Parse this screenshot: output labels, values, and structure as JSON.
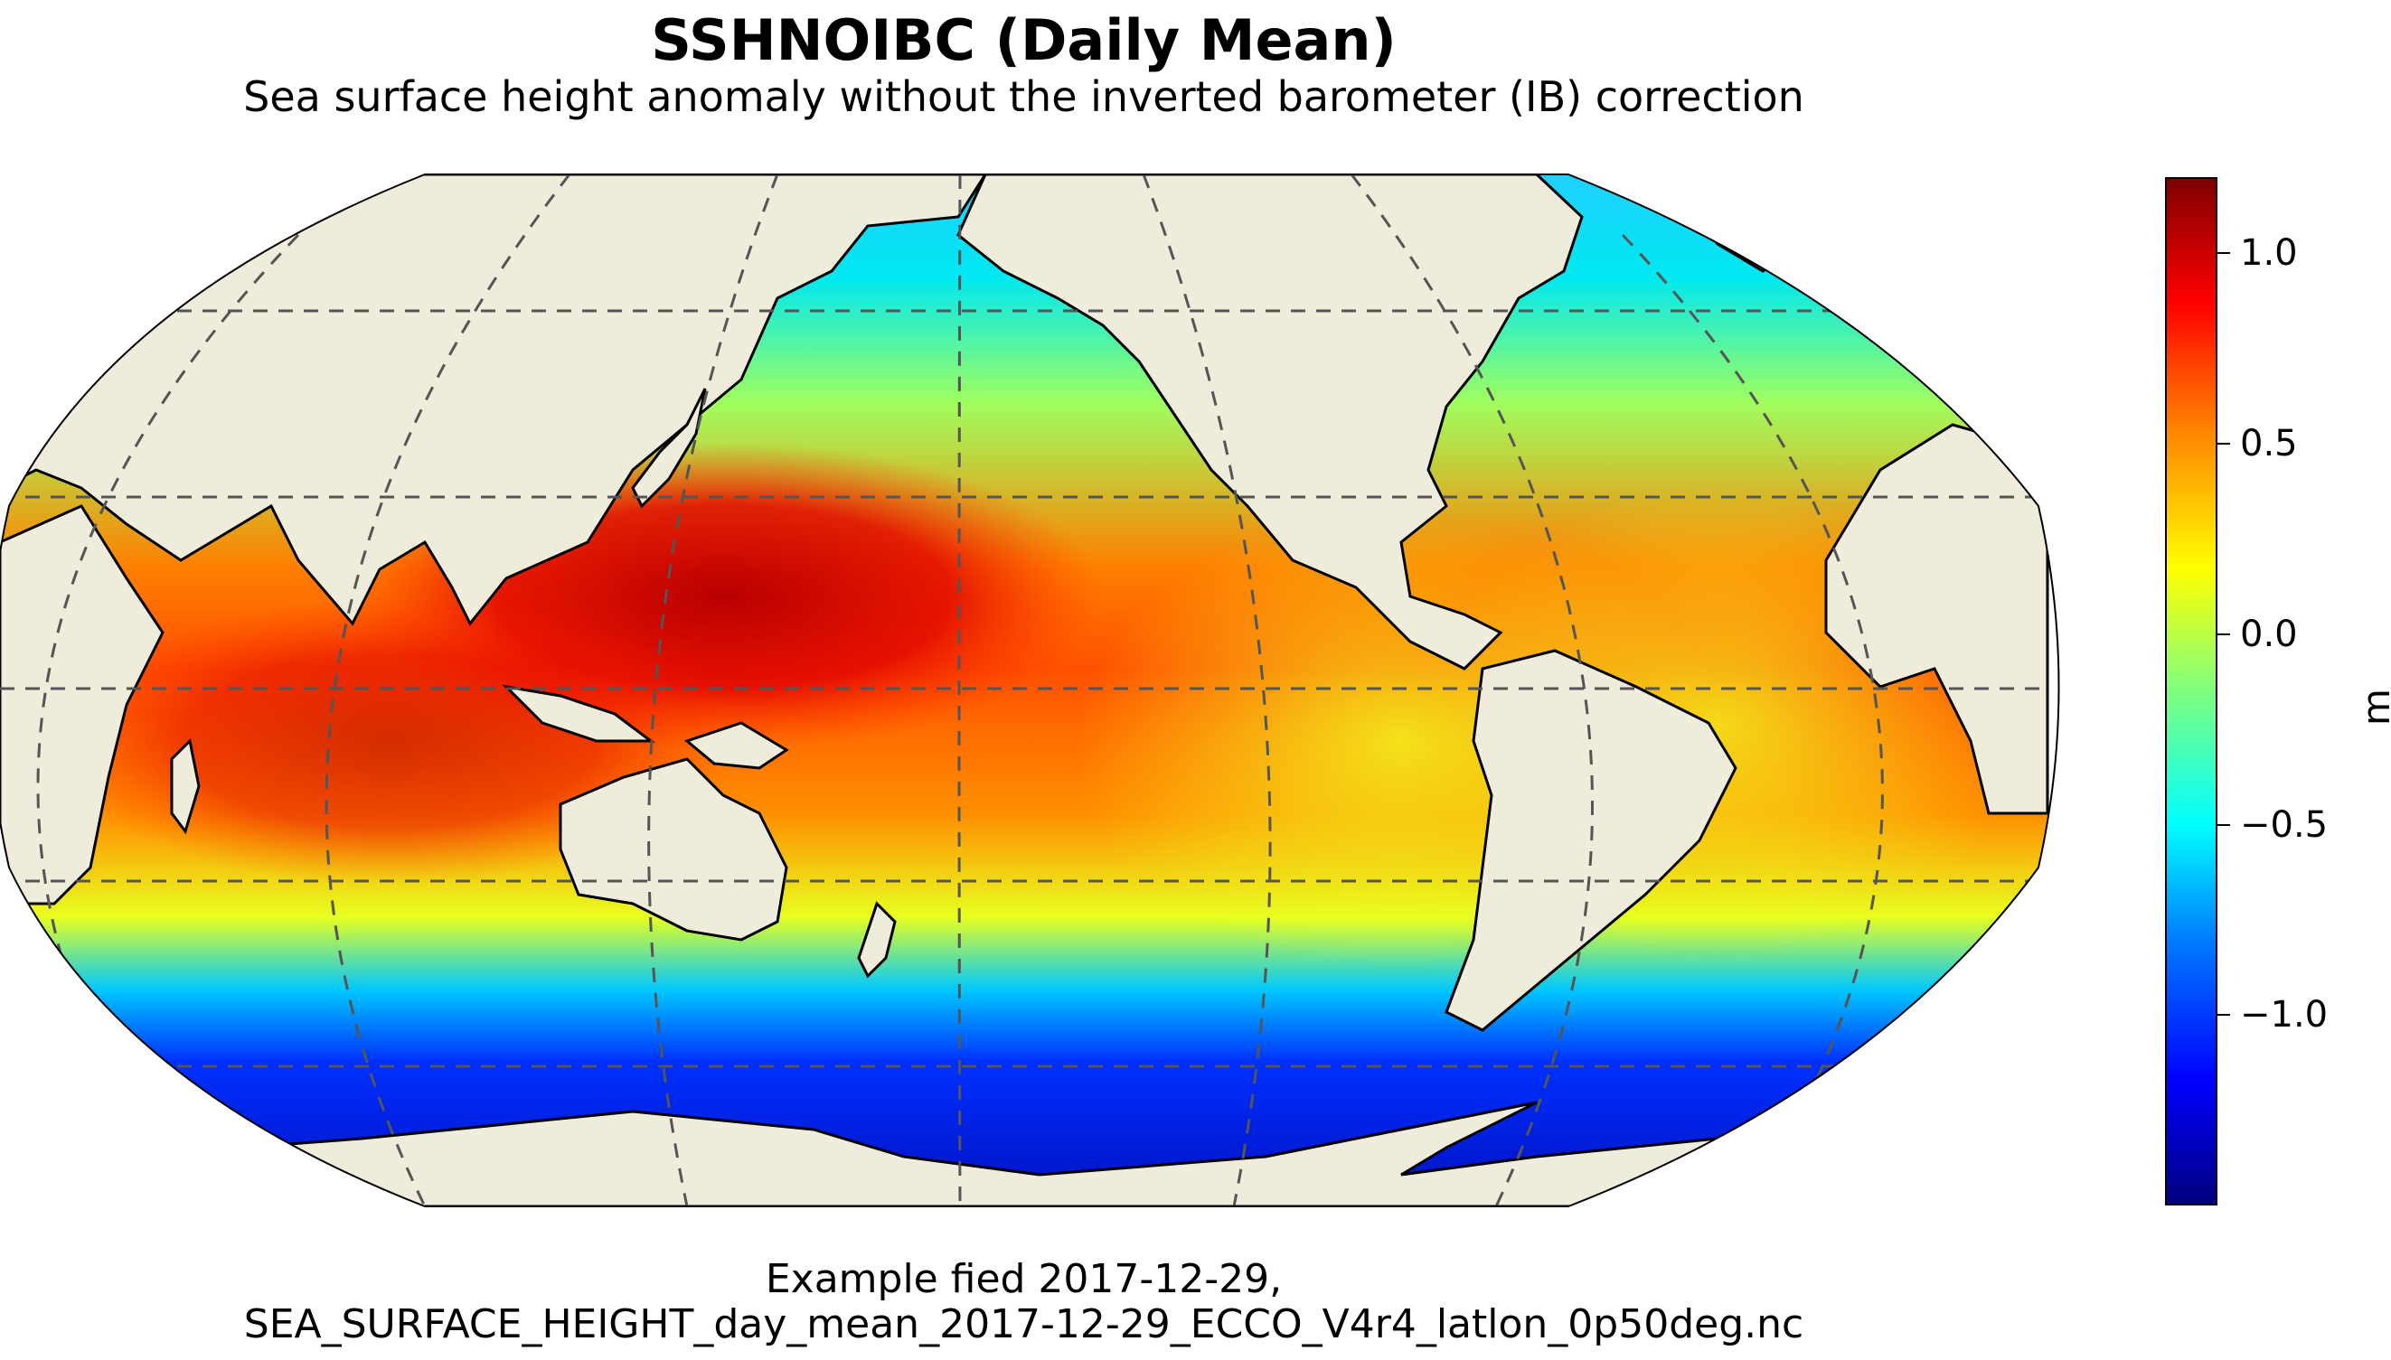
{
  "figure": {
    "title": "SSHNOIBC (Daily Mean)",
    "subtitle": "Sea surface height anomaly without the inverted barometer (IB) correction",
    "caption_line1": "Example fied 2017-12-29,",
    "caption_line2": "SEA_SURFACE_HEIGHT_day_mean_2017-12-29_ECCO_V4r4_latlon_0p50deg.nc"
  },
  "map": {
    "projection": "Robinson",
    "central_longitude": 180,
    "gridlines": true,
    "land_color": "#efecdc",
    "coastline_color": "#000000"
  },
  "colorbar": {
    "label": "m",
    "colormap": "jet",
    "range": [
      -1.5,
      1.2
    ],
    "ticks": [
      {
        "value": 1.0,
        "label": "1.0"
      },
      {
        "value": 0.5,
        "label": "0.5"
      },
      {
        "value": 0.0,
        "label": "0.0"
      },
      {
        "value": -0.5,
        "label": "−0.5"
      },
      {
        "value": -1.0,
        "label": "−1.0"
      }
    ]
  }
}
